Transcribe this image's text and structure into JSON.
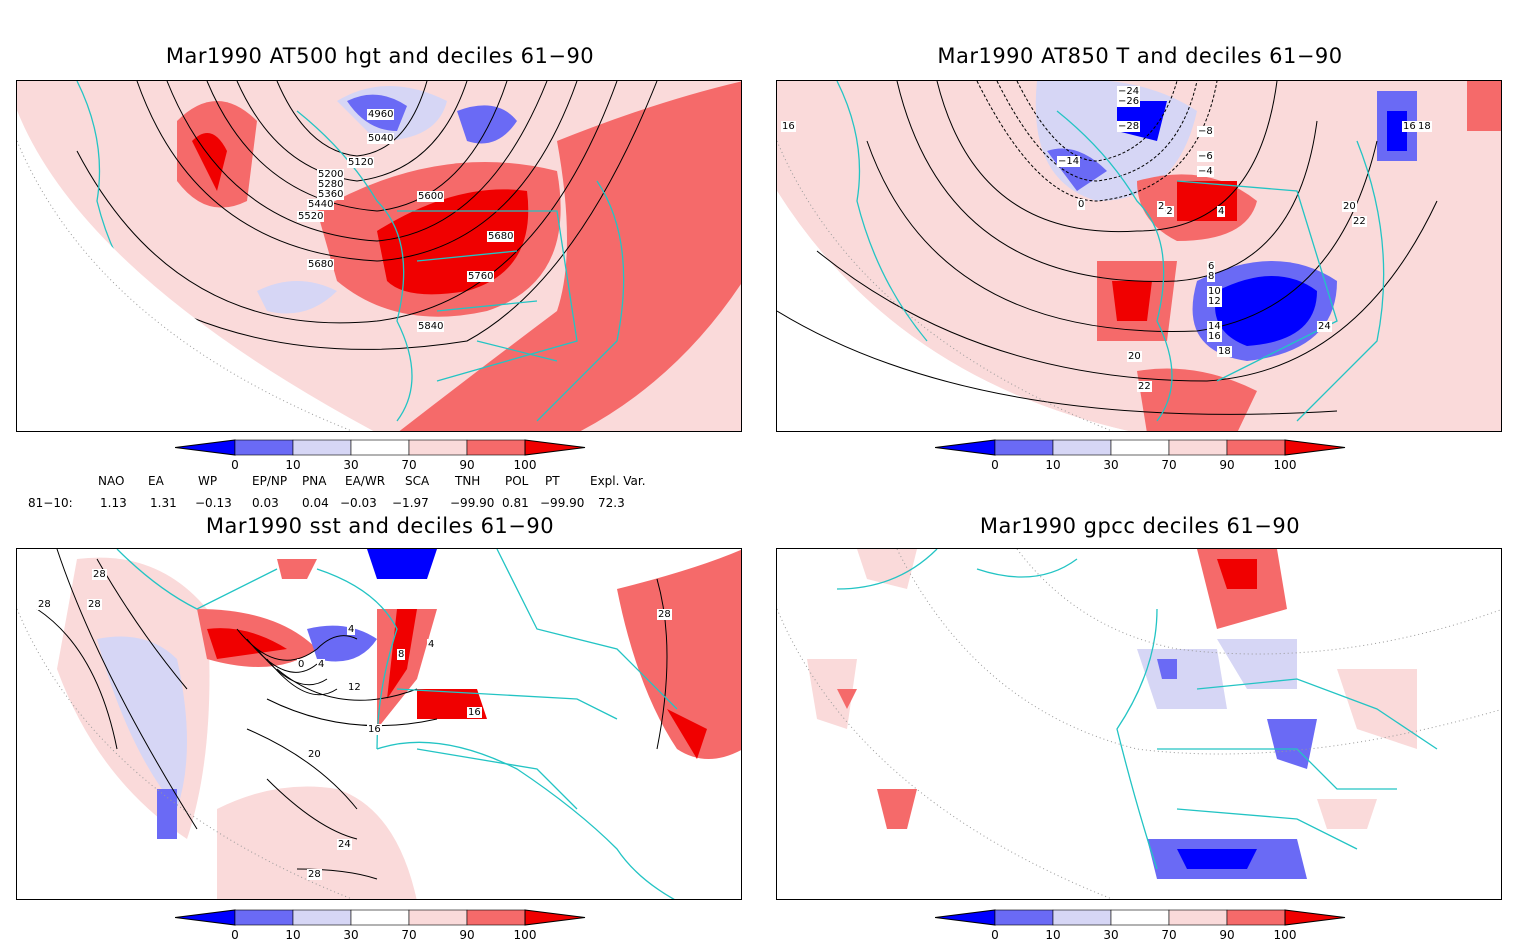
{
  "panels": [
    {
      "title": "Mar1990 AT500 hgt and deciles 61−90",
      "contour_labels": [
        "4960",
        "5040",
        "5120",
        "5200",
        "5280",
        "5360",
        "5440",
        "5520",
        "5600",
        "5680",
        "5680",
        "5760",
        "5840"
      ]
    },
    {
      "title": "Mar1990 AT850 T and deciles 61−90",
      "contour_labels": [
        "−24",
        "−26",
        "−28",
        "−14",
        "−8",
        "−6",
        "−4",
        "−2",
        "0",
        "2",
        "4",
        "6",
        "8",
        "10",
        "12",
        "14",
        "16",
        "18",
        "20",
        "22",
        "24",
        "16",
        "18",
        "20",
        "22",
        "16"
      ]
    },
    {
      "title": "Mar1990 sst and deciles 61−90",
      "contour_labels": [
        "28",
        "28",
        "28",
        "0",
        "4",
        "4",
        "4",
        "8",
        "12",
        "16",
        "16",
        "20",
        "24",
        "28",
        "28"
      ]
    },
    {
      "title": "Mar1990 gpcc deciles 61−90",
      "contour_labels": []
    }
  ],
  "colorbar": {
    "ticks": [
      "0",
      "10",
      "30",
      "70",
      "90",
      "100"
    ],
    "colors": {
      "dark_blue": "#0000ff",
      "mid_blue": "#6a6af5",
      "light_blue": "#d6d6f5",
      "white": "#ffffff",
      "light_red": "#fadada",
      "mid_red": "#f56a6a",
      "dark_red": "#f00000"
    }
  },
  "teleconnections": {
    "headers": [
      "NAO",
      "EA",
      "WP",
      "EP/NP",
      "PNA",
      "EA/WR",
      "SCA",
      "TNH",
      "POL",
      "PT",
      "Expl. Var."
    ],
    "row_label": "81−10:",
    "values": [
      "1.13",
      "1.31",
      "−0.13",
      "0.03",
      "0.04",
      "−0.03",
      "−1.97",
      "−99.90",
      "0.81",
      "−99.90",
      "72.3"
    ]
  },
  "colors": {
    "coast": "#23c4c4",
    "frame": "#000000"
  }
}
